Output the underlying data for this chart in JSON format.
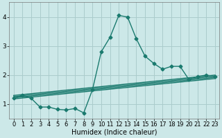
{
  "title": "",
  "xlabel": "Humidex (Indice chaleur)",
  "bg_color": "#cce8e8",
  "grid_color": "#aacccc",
  "line_color": "#1a7a6e",
  "xlim": [
    -0.5,
    23.5
  ],
  "ylim": [
    0.5,
    4.5
  ],
  "yticks": [
    1,
    2,
    3,
    4
  ],
  "xticks": [
    0,
    1,
    2,
    3,
    4,
    5,
    6,
    7,
    8,
    9,
    10,
    11,
    12,
    13,
    14,
    15,
    16,
    17,
    18,
    19,
    20,
    21,
    22,
    23
  ],
  "main_line_x": [
    0,
    1,
    2,
    3,
    4,
    5,
    6,
    7,
    8,
    9,
    10,
    11,
    12,
    13,
    14,
    15,
    16,
    17,
    18,
    19,
    20,
    21,
    22,
    23
  ],
  "main_line_y": [
    1.2,
    1.3,
    1.2,
    0.9,
    0.9,
    0.82,
    0.8,
    0.85,
    0.7,
    1.5,
    2.8,
    3.3,
    4.05,
    4.0,
    3.25,
    2.65,
    2.4,
    2.2,
    2.3,
    2.3,
    1.85,
    1.95,
    2.0,
    1.95
  ],
  "reg_lines": [
    {
      "x": [
        0,
        23
      ],
      "y": [
        1.18,
        1.88
      ]
    },
    {
      "x": [
        0,
        23
      ],
      "y": [
        1.22,
        1.92
      ]
    },
    {
      "x": [
        0,
        23
      ],
      "y": [
        1.26,
        1.96
      ]
    },
    {
      "x": [
        0,
        23
      ],
      "y": [
        1.3,
        2.0
      ]
    }
  ],
  "xlabel_fontsize": 7,
  "tick_fontsize": 6,
  "line_width": 1.0,
  "marker": "D",
  "markersize": 2.5
}
